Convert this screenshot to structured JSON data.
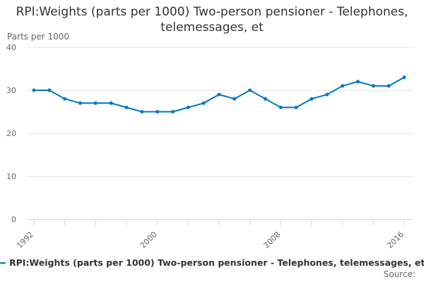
{
  "chart_data": {
    "type": "line",
    "title": "RPI:Weights (parts per 1000) Two-person pensioner - Telephones, telemessages, et",
    "ylabel": "Parts per 1000",
    "xlabel": "",
    "ylim": [
      0,
      40
    ],
    "yticks": [
      0,
      10,
      20,
      30,
      40
    ],
    "xtick_labels": [
      "1992",
      "2000",
      "2008",
      "2016"
    ],
    "x": [
      1992,
      1993,
      1994,
      1995,
      1996,
      1997,
      1998,
      1999,
      2000,
      2001,
      2002,
      2003,
      2004,
      2005,
      2006,
      2007,
      2008,
      2009,
      2010,
      2011,
      2012,
      2013,
      2014,
      2015,
      2016
    ],
    "series": [
      {
        "name": "RPI:Weights (parts per 1000) Two-person pensioner - Telephones, telemessages, et",
        "color": "#0077c0",
        "values": [
          30,
          30,
          28,
          27,
          27,
          27,
          26,
          25,
          25,
          25,
          26,
          27,
          29,
          28,
          30,
          28,
          26,
          26,
          28,
          29,
          31,
          32,
          31,
          31,
          33
        ]
      }
    ],
    "legend": "bottom",
    "grid": true,
    "source": "Source:"
  }
}
